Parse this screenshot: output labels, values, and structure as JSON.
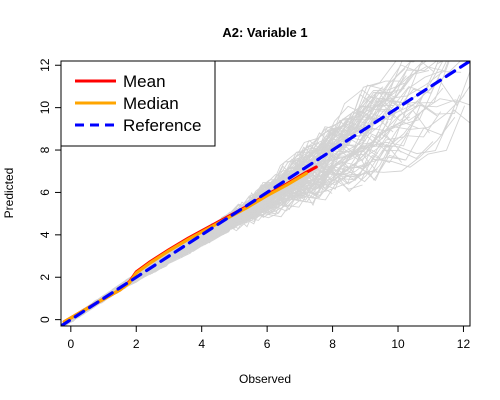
{
  "chart_data": {
    "type": "line",
    "title": "A2: Variable 1",
    "xlabel": "Observed",
    "ylabel": "Predicted",
    "xlim": [
      -0.3,
      12.2
    ],
    "ylim": [
      -0.3,
      12.2
    ],
    "x_ticks": [
      0,
      2,
      4,
      6,
      8,
      10,
      12
    ],
    "y_ticks": [
      0,
      2,
      4,
      6,
      8,
      10,
      12
    ],
    "x_tick_labels": [
      "0",
      "2",
      "4",
      "6",
      "8",
      "10",
      "12"
    ],
    "y_tick_labels": [
      "0",
      "2",
      "4",
      "6",
      "8",
      "10",
      "12"
    ],
    "legend_position": "top-left",
    "grid": false,
    "background_traces_color": "#d3d3d3",
    "series": [
      {
        "name": "Mean",
        "color": "#ff0000",
        "style": "solid",
        "x": [
          -0.2,
          0.3,
          0.8,
          1.2,
          1.5,
          1.8,
          2.0,
          2.4,
          3.0,
          3.6,
          4.2,
          4.8,
          5.4,
          6.0,
          6.6,
          7.2,
          7.5
        ],
        "y": [
          -0.1,
          0.35,
          0.8,
          1.15,
          1.4,
          1.8,
          2.25,
          2.7,
          3.3,
          3.85,
          4.35,
          4.85,
          5.35,
          5.9,
          6.4,
          6.95,
          7.2
        ]
      },
      {
        "name": "Median",
        "color": "#ffa500",
        "style": "solid",
        "x": [
          -0.2,
          0.3,
          0.8,
          1.2,
          1.5,
          1.8,
          2.0,
          2.4,
          3.0,
          3.6,
          4.2,
          4.8,
          5.4,
          6.0,
          6.6,
          7.2
        ],
        "y": [
          -0.1,
          0.35,
          0.8,
          1.15,
          1.4,
          1.75,
          2.2,
          2.65,
          3.25,
          3.8,
          4.3,
          4.8,
          5.3,
          5.85,
          6.35,
          6.9
        ]
      },
      {
        "name": "Reference",
        "color": "#0000ff",
        "style": "dashed",
        "x": [
          -0.3,
          12.2
        ],
        "y": [
          -0.3,
          12.2
        ]
      }
    ]
  }
}
